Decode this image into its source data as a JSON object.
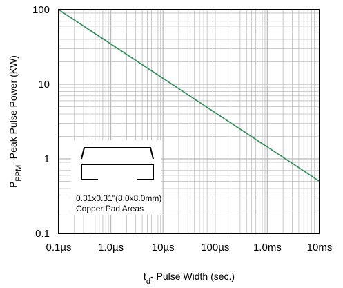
{
  "chart_data": {
    "type": "line",
    "xlabel": {
      "main": "t",
      "sub": "d",
      "rest": "- Pulse Width (sec.)"
    },
    "ylabel": {
      "main": "P",
      "sub": "PPM",
      "rest": "- Peak Pulse Power (KW)"
    },
    "x_scale": "log",
    "y_scale": "log",
    "xlim": [
      "0.1µs",
      "10ms"
    ],
    "ylim": [
      0.1,
      100
    ],
    "x_ticks": [
      {
        "value": 1e-07,
        "label": "0.1µs"
      },
      {
        "value": 1e-06,
        "label": "1.0µs"
      },
      {
        "value": 1e-05,
        "label": "10µs"
      },
      {
        "value": 0.0001,
        "label": "100µs"
      },
      {
        "value": 0.001,
        "label": "1.0ms"
      },
      {
        "value": 0.01,
        "label": "10ms"
      }
    ],
    "y_ticks": [
      {
        "value": 0.1,
        "label": "0.1"
      },
      {
        "value": 1,
        "label": "1"
      },
      {
        "value": 10,
        "label": "10"
      },
      {
        "value": 100,
        "label": "100"
      }
    ],
    "grid": true,
    "series": [
      {
        "x": [
          "0.1µs",
          "10ms"
        ],
        "y": [
          100,
          0.5
        ]
      }
    ],
    "inset": {
      "line1": "0.31x0.31\"(8.0x8.0mm)",
      "line2": "Copper Pad Areas"
    },
    "colors": {
      "line": "#2e8b57",
      "grid": "#bbbbbb",
      "frame": "#000000"
    }
  }
}
